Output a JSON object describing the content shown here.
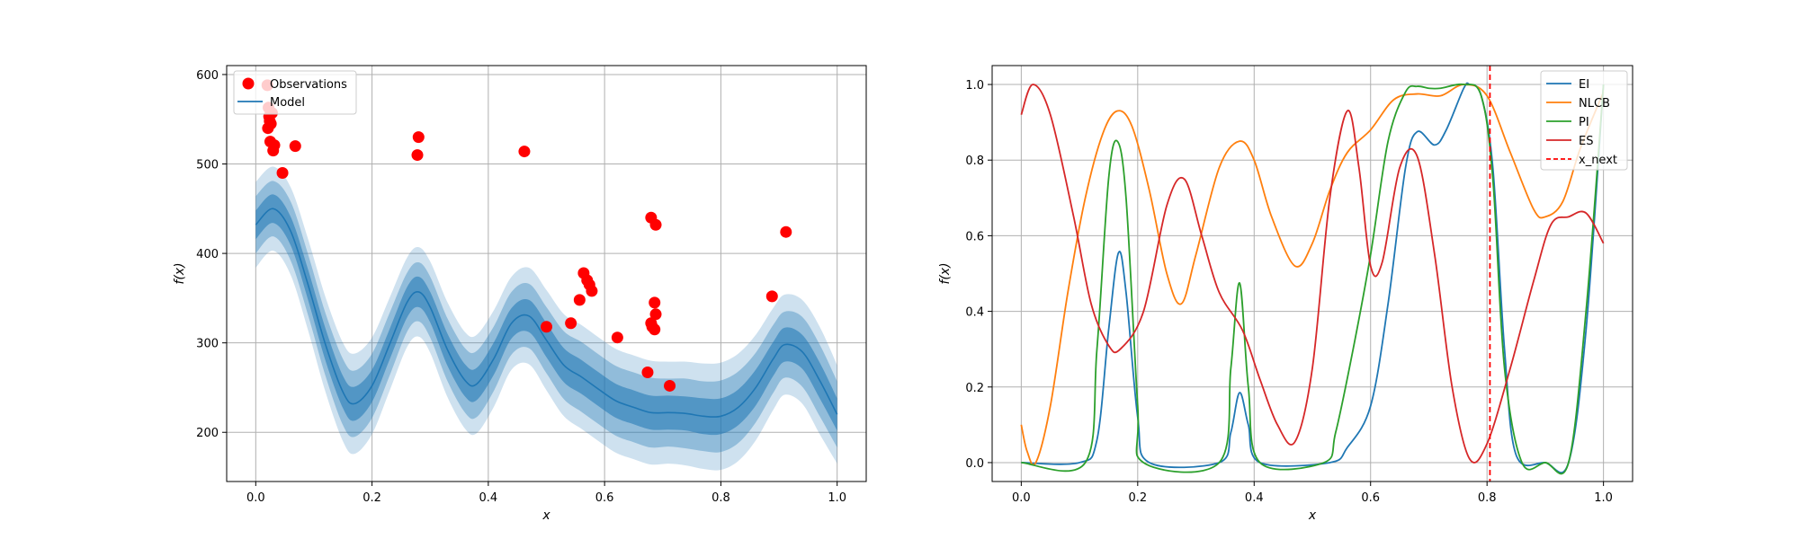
{
  "chart_data": [
    {
      "type": "scatter",
      "title": "",
      "xlabel": "x",
      "ylabel": "f(x)",
      "xlim": [
        -0.05,
        1.05
      ],
      "ylim": [
        145,
        610
      ],
      "xticks": [
        0.0,
        0.2,
        0.4,
        0.6,
        0.8,
        1.0
      ],
      "xtick_labels": [
        "0.0",
        "0.2",
        "0.4",
        "0.6",
        "0.8",
        "1.0"
      ],
      "yticks": [
        200,
        300,
        400,
        500,
        600
      ],
      "ytick_labels": [
        "200",
        "300",
        "400",
        "500",
        "600"
      ],
      "grid": true,
      "legend_position": "top-left",
      "legend": [
        {
          "label": "Observations",
          "marker": "circle",
          "color": "#ff0000"
        },
        {
          "label": "Model",
          "marker": "line",
          "color": "#1f77b4"
        }
      ],
      "observations": {
        "name": "Observations",
        "color": "#ff0000",
        "x": [
          0.02,
          0.022,
          0.024,
          0.021,
          0.026,
          0.023,
          0.028,
          0.032,
          0.025,
          0.03,
          0.068,
          0.046,
          0.28,
          0.278,
          0.462,
          0.5,
          0.542,
          0.557,
          0.564,
          0.57,
          0.574,
          0.578,
          0.622,
          0.674,
          0.68,
          0.682,
          0.686,
          0.688,
          0.68,
          0.686,
          0.688,
          0.712,
          0.888,
          0.912
        ],
        "y": [
          588,
          563,
          548,
          540,
          545,
          553,
          557,
          521,
          525,
          515,
          520,
          490,
          530,
          510,
          514,
          318,
          322,
          348,
          378,
          370,
          365,
          358,
          306,
          267,
          322,
          318,
          315,
          432,
          440,
          345,
          332,
          252,
          352,
          424
        ]
      },
      "model": {
        "name": "Model",
        "color": "#1f77b4",
        "x": [
          0.0,
          0.03,
          0.06,
          0.09,
          0.12,
          0.15,
          0.17,
          0.2,
          0.23,
          0.26,
          0.28,
          0.3,
          0.33,
          0.36,
          0.38,
          0.41,
          0.44,
          0.47,
          0.5,
          0.53,
          0.56,
          0.59,
          0.62,
          0.65,
          0.68,
          0.71,
          0.74,
          0.77,
          0.8,
          0.83,
          0.86,
          0.89,
          0.91,
          0.94,
          0.97,
          1.0
        ],
        "mean": [
          432,
          450,
          425,
          365,
          298,
          245,
          232,
          252,
          298,
          345,
          357,
          340,
          292,
          258,
          254,
          283,
          322,
          330,
          303,
          275,
          262,
          248,
          235,
          228,
          222,
          222,
          221,
          218,
          218,
          228,
          250,
          282,
          298,
          290,
          258,
          220
        ]
      },
      "bands": [
        {
          "fill": "#1f77b4",
          "opacity": 0.22,
          "half_width": [
            48,
            47,
            49,
            51,
            53,
            55,
            56,
            54,
            52,
            50,
            50,
            51,
            53,
            54,
            55,
            54,
            52,
            54,
            56,
            57,
            58,
            58,
            58,
            58,
            58,
            57,
            58,
            59,
            60,
            60,
            59,
            57,
            56,
            58,
            60,
            55
          ]
        },
        {
          "fill": "#1f77b4",
          "opacity": 0.35,
          "half_width": [
            32,
            31,
            33,
            34,
            35,
            37,
            37,
            36,
            35,
            33,
            33,
            34,
            35,
            36,
            37,
            36,
            35,
            36,
            37,
            38,
            39,
            39,
            39,
            39,
            39,
            38,
            39,
            39,
            40,
            40,
            39,
            38,
            37,
            39,
            40,
            37
          ]
        },
        {
          "fill": "#1f77b4",
          "opacity": 0.55,
          "half_width": [
            16,
            16,
            16,
            17,
            18,
            18,
            19,
            18,
            17,
            17,
            17,
            17,
            18,
            18,
            18,
            18,
            17,
            18,
            19,
            19,
            19,
            19,
            19,
            19,
            19,
            19,
            19,
            20,
            20,
            20,
            20,
            19,
            19,
            19,
            20,
            18
          ]
        }
      ]
    },
    {
      "type": "line",
      "title": "",
      "xlabel": "x",
      "ylabel": "f(x)",
      "xlim": [
        -0.05,
        1.05
      ],
      "ylim": [
        -0.05,
        1.05
      ],
      "xticks": [
        0.0,
        0.2,
        0.4,
        0.6,
        0.8,
        1.0
      ],
      "xtick_labels": [
        "0.0",
        "0.2",
        "0.4",
        "0.6",
        "0.8",
        "1.0"
      ],
      "yticks": [
        0.0,
        0.2,
        0.4,
        0.6,
        0.8,
        1.0
      ],
      "ytick_labels": [
        "0.0",
        "0.2",
        "0.4",
        "0.6",
        "0.8",
        "1.0"
      ],
      "grid": true,
      "legend_position": "top-right",
      "series": [
        {
          "name": "EI",
          "color": "#1f77b4",
          "x": [
            0.0,
            0.1,
            0.13,
            0.15,
            0.167,
            0.18,
            0.2,
            0.22,
            0.34,
            0.36,
            0.375,
            0.39,
            0.41,
            0.53,
            0.56,
            0.6,
            0.63,
            0.66,
            0.68,
            0.71,
            0.73,
            0.76,
            0.77,
            0.79,
            0.81,
            0.83,
            0.85,
            0.9,
            0.94,
            0.97,
            1.0
          ],
          "y": [
            0.0,
            0.0,
            0.06,
            0.35,
            0.555,
            0.45,
            0.12,
            0.0,
            0.0,
            0.08,
            0.185,
            0.1,
            0.0,
            0.0,
            0.04,
            0.15,
            0.42,
            0.78,
            0.875,
            0.84,
            0.88,
            0.99,
            1.0,
            0.97,
            0.78,
            0.3,
            0.02,
            0.0,
            0.0,
            0.35,
            1.0
          ]
        },
        {
          "name": "NLCB",
          "color": "#ff7f0e",
          "x": [
            0.0,
            0.01,
            0.025,
            0.05,
            0.08,
            0.11,
            0.14,
            0.165,
            0.19,
            0.22,
            0.25,
            0.275,
            0.3,
            0.34,
            0.375,
            0.4,
            0.43,
            0.47,
            0.5,
            0.53,
            0.56,
            0.6,
            0.64,
            0.68,
            0.72,
            0.76,
            0.8,
            0.84,
            0.88,
            0.9,
            0.93,
            0.96,
            1.0
          ],
          "y": [
            0.1,
            0.03,
            0.0,
            0.15,
            0.45,
            0.7,
            0.87,
            0.93,
            0.89,
            0.72,
            0.5,
            0.42,
            0.55,
            0.78,
            0.85,
            0.8,
            0.65,
            0.52,
            0.58,
            0.72,
            0.82,
            0.88,
            0.96,
            0.975,
            0.97,
            1.0,
            0.97,
            0.82,
            0.67,
            0.65,
            0.69,
            0.83,
            0.98
          ]
        },
        {
          "name": "PI",
          "color": "#2ca02c",
          "x": [
            0.0,
            0.11,
            0.13,
            0.15,
            0.165,
            0.18,
            0.2,
            0.21,
            0.34,
            0.36,
            0.375,
            0.39,
            0.41,
            0.52,
            0.54,
            0.57,
            0.6,
            0.63,
            0.66,
            0.68,
            0.7,
            0.72,
            0.76,
            0.79,
            0.81,
            0.83,
            0.86,
            0.9,
            0.94,
            0.97,
            1.0
          ],
          "y": [
            0.0,
            0.0,
            0.3,
            0.75,
            0.85,
            0.7,
            0.15,
            0.0,
            0.0,
            0.25,
            0.475,
            0.2,
            0.0,
            0.0,
            0.08,
            0.3,
            0.55,
            0.85,
            0.98,
            0.995,
            0.99,
            0.99,
            1.0,
            0.97,
            0.75,
            0.25,
            0.0,
            0.0,
            0.0,
            0.4,
            1.0
          ]
        },
        {
          "name": "ES",
          "color": "#d62728",
          "x": [
            0.0,
            0.02,
            0.05,
            0.09,
            0.12,
            0.15,
            0.17,
            0.21,
            0.25,
            0.28,
            0.31,
            0.34,
            0.38,
            0.41,
            0.44,
            0.47,
            0.5,
            0.53,
            0.56,
            0.58,
            0.6,
            0.62,
            0.65,
            0.68,
            0.71,
            0.74,
            0.77,
            0.8,
            0.84,
            0.88,
            0.91,
            0.94,
            0.97,
            1.0
          ],
          "y": [
            0.92,
            1.0,
            0.92,
            0.65,
            0.42,
            0.31,
            0.3,
            0.4,
            0.68,
            0.75,
            0.6,
            0.45,
            0.35,
            0.22,
            0.1,
            0.055,
            0.25,
            0.7,
            0.93,
            0.78,
            0.52,
            0.53,
            0.78,
            0.81,
            0.55,
            0.2,
            0.01,
            0.05,
            0.25,
            0.48,
            0.63,
            0.65,
            0.66,
            0.58
          ]
        }
      ],
      "reference_line": {
        "name": "x_next",
        "x": 0.805,
        "color": "#ff0000",
        "style": "dashed"
      },
      "legend": [
        {
          "label": "EI",
          "color": "#1f77b4",
          "style": "solid"
        },
        {
          "label": "NLCB",
          "color": "#ff7f0e",
          "style": "solid"
        },
        {
          "label": "PI",
          "color": "#2ca02c",
          "style": "solid"
        },
        {
          "label": "ES",
          "color": "#d62728",
          "style": "solid"
        },
        {
          "label": "x_next",
          "color": "#ff0000",
          "style": "dashed"
        }
      ]
    }
  ]
}
